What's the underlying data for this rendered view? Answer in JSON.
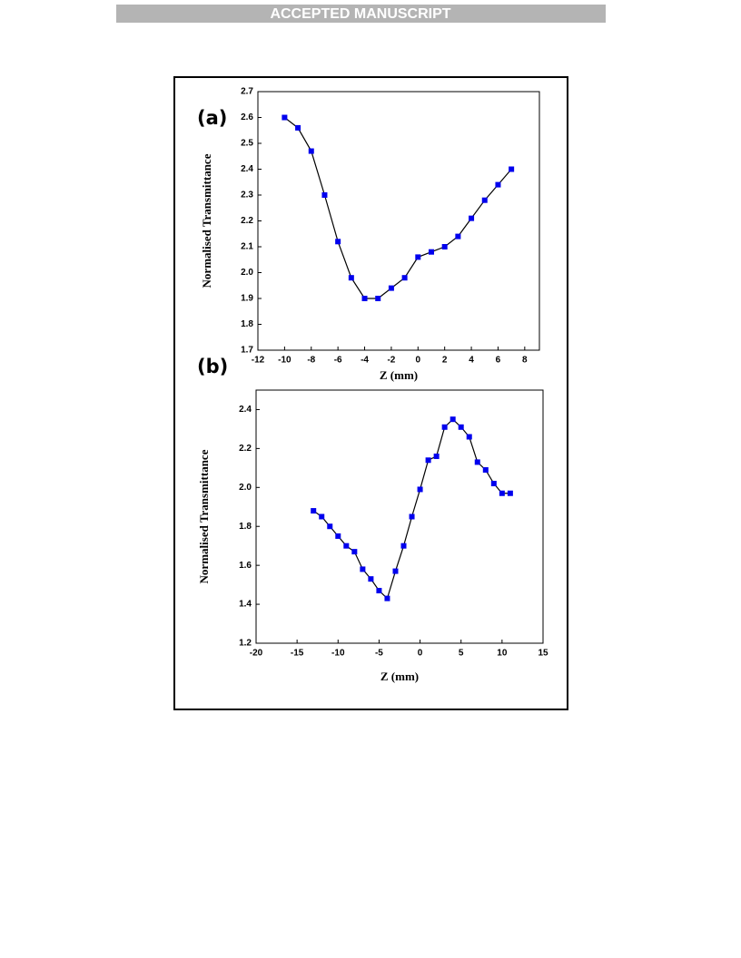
{
  "header": {
    "banner": "ACCEPTED MANUSCRIPT"
  },
  "chart_data": [
    {
      "type": "line",
      "panel_label": "(a)",
      "xlabel": "Z (mm)",
      "ylabel": "Normalised Transmittance",
      "x": [
        -10,
        -9,
        -8,
        -7,
        -6,
        -5,
        -4,
        -3,
        -2,
        -1,
        0,
        1,
        2,
        3,
        4,
        5,
        6,
        7
      ],
      "values": [
        2.6,
        2.56,
        2.47,
        2.3,
        2.12,
        1.98,
        1.9,
        1.9,
        1.94,
        1.98,
        2.06,
        2.08,
        2.1,
        2.14,
        2.21,
        2.28,
        2.34,
        2.4
      ],
      "color": "#0000ee",
      "line_color": "#000000",
      "xlim": [
        -12,
        9.1
      ],
      "xticks": [
        -12,
        -10,
        -8,
        -6,
        -4,
        -2,
        0,
        2,
        4,
        6,
        8
      ],
      "ylim": [
        1.7,
        2.7
      ],
      "yticks": [
        1.7,
        1.8,
        1.9,
        {
          "value": 2,
          "label": "2.0"
        },
        2.1,
        2.2,
        2.3,
        2.4,
        2.5,
        2.6,
        2.7
      ]
    },
    {
      "type": "line",
      "panel_label": "(b)",
      "xlabel": "Z (mm)",
      "ylabel": "Normalised Transmittance",
      "x": [
        -13,
        -12,
        -11,
        -10,
        -9,
        -8,
        -7,
        -6,
        -5,
        -4,
        -3,
        -2,
        -1,
        0,
        1,
        2,
        3,
        4,
        5,
        6,
        7,
        8,
        9,
        10,
        11
      ],
      "values": [
        1.88,
        1.85,
        1.8,
        1.75,
        1.7,
        1.67,
        1.58,
        1.53,
        1.47,
        1.43,
        1.57,
        1.7,
        1.85,
        1.99,
        2.14,
        2.16,
        2.31,
        2.35,
        2.31,
        2.26,
        2.13,
        2.09,
        2.02,
        1.97,
        1.97
      ],
      "color": "#0000ee",
      "line_color": "#000000",
      "xlim": [
        -20,
        15
      ],
      "xticks": [
        -20,
        -15,
        -10,
        -5,
        0,
        5,
        10,
        15
      ],
      "ylim": [
        1.2,
        2.5
      ],
      "yticks": [
        1.2,
        1.4,
        1.6,
        1.8,
        {
          "value": 2,
          "label": "2.0"
        },
        2.2,
        2.4
      ]
    }
  ]
}
